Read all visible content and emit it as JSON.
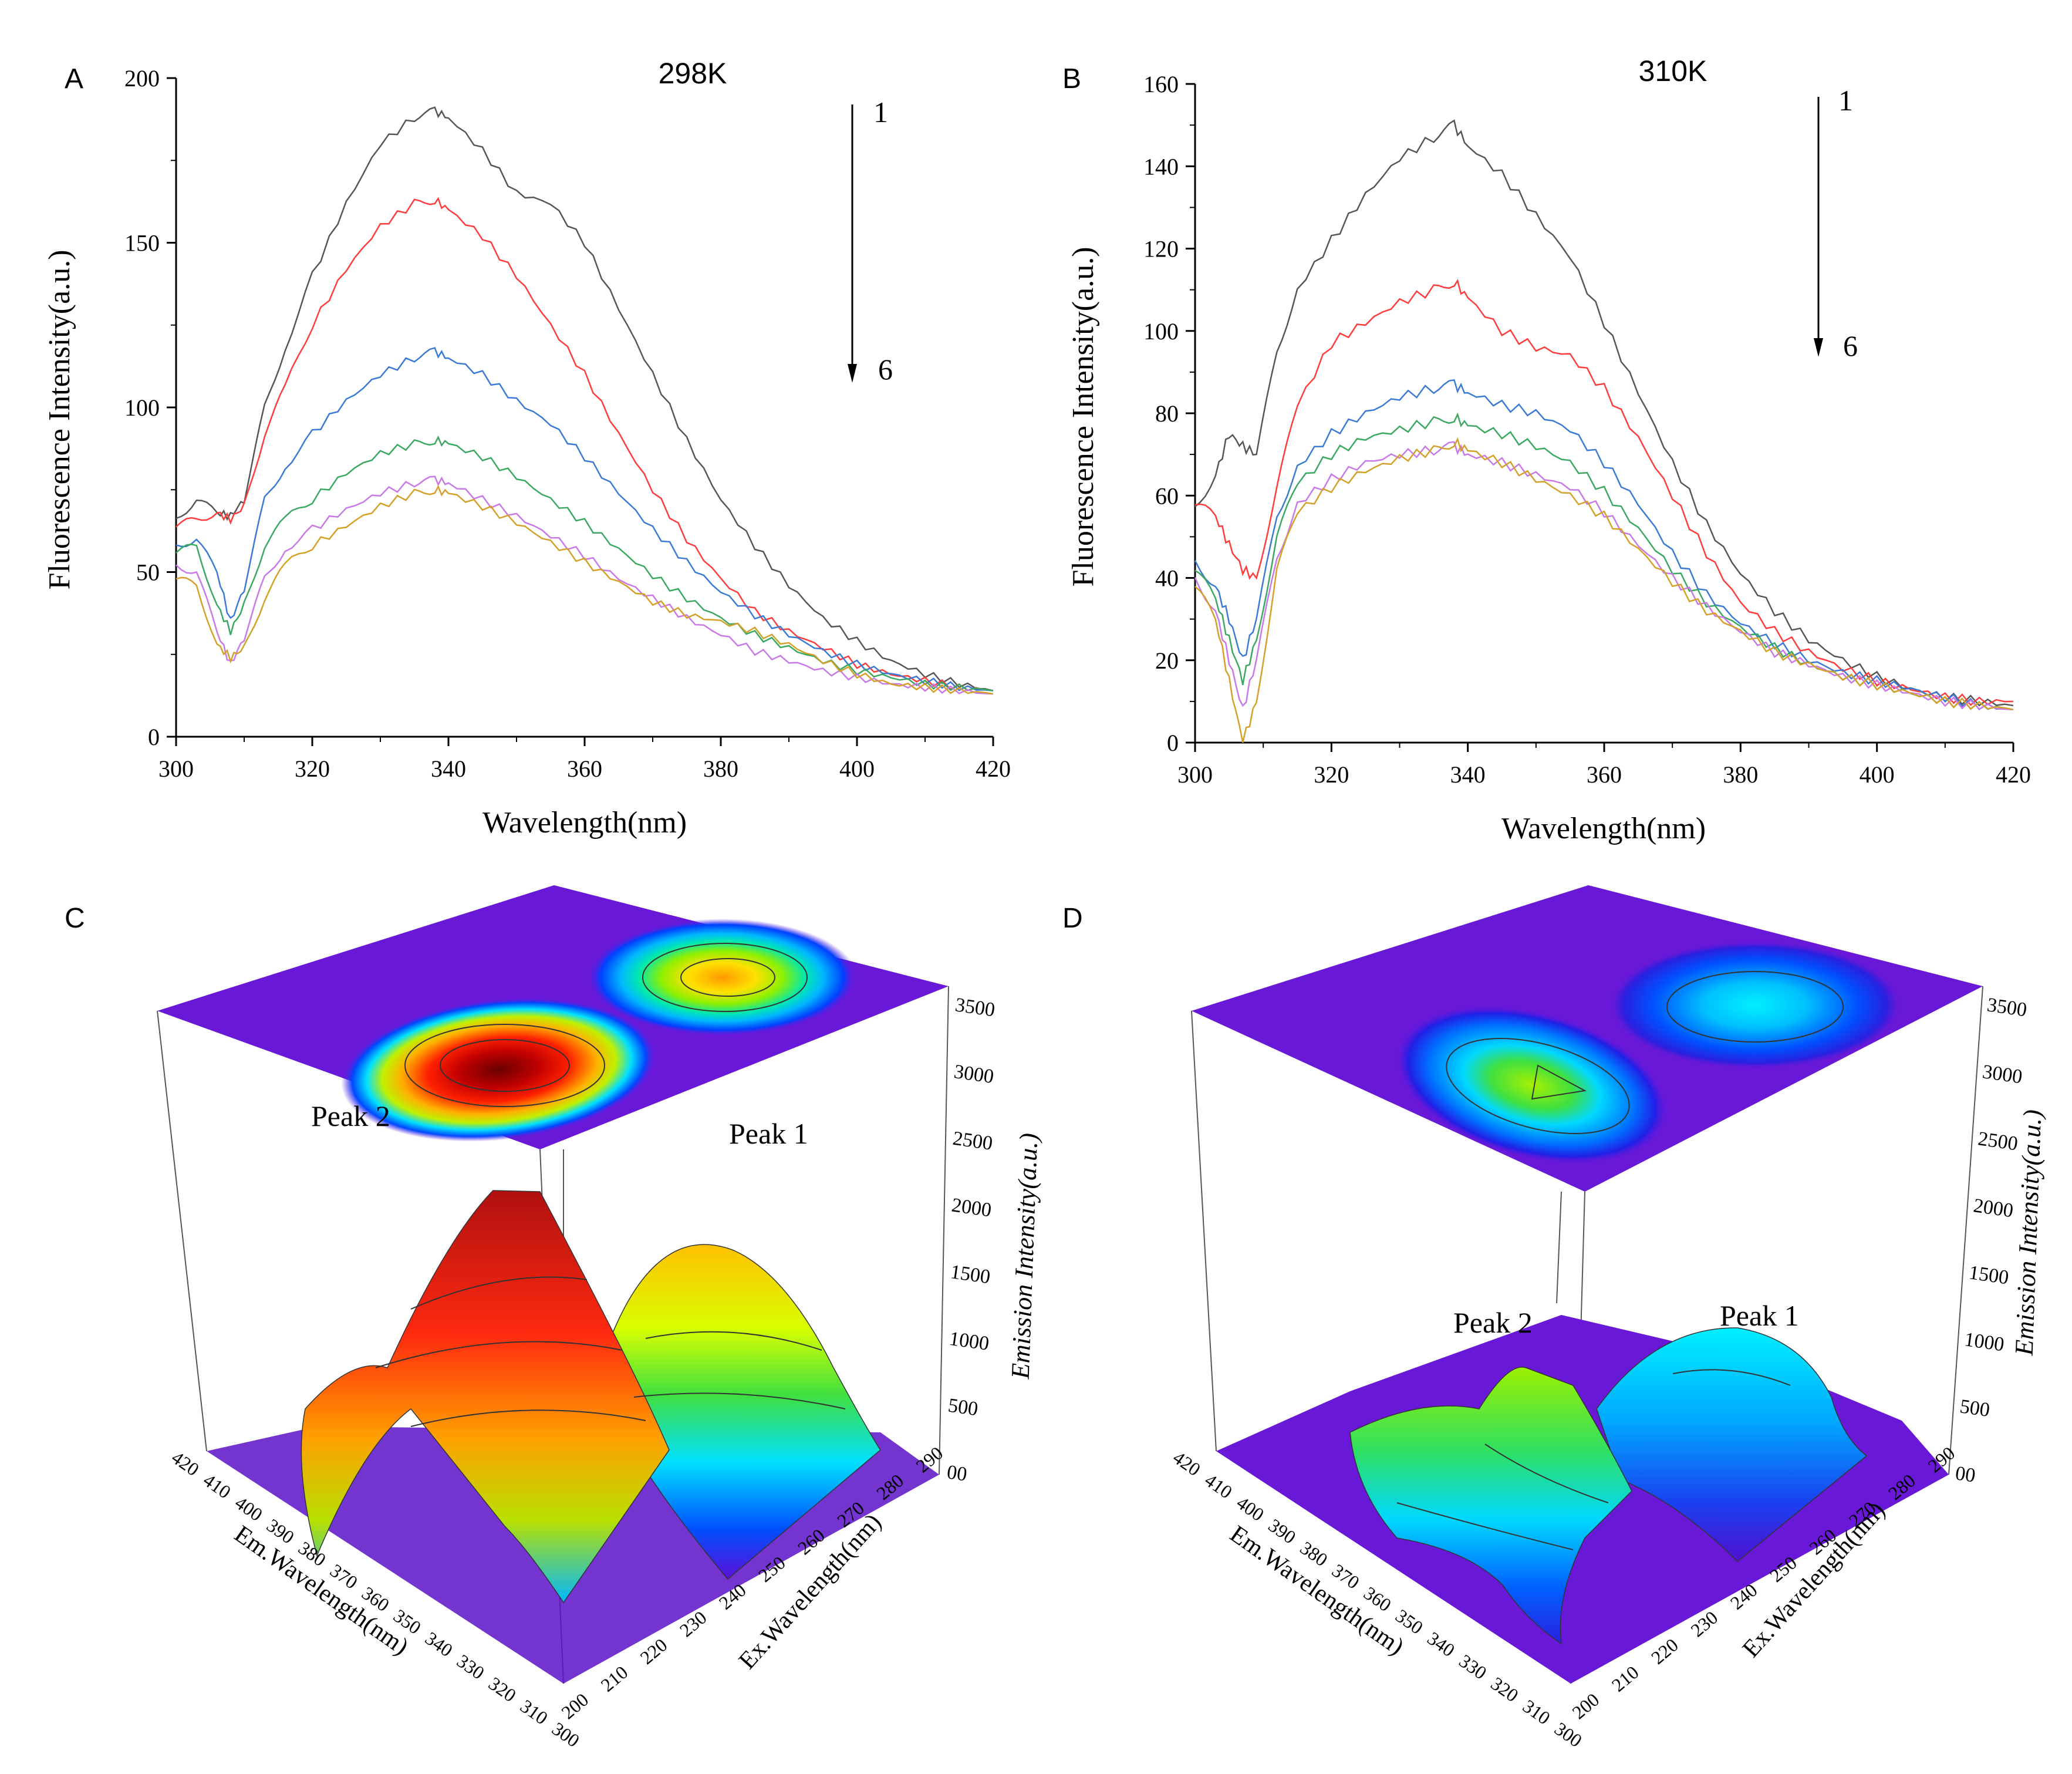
{
  "chart_data": [
    {
      "panel": "A",
      "type": "line",
      "title": "298K",
      "xlabel": "Wavelength(nm)",
      "ylabel": "Fluorescence Intensity(a.u.)",
      "xlim": [
        300,
        420
      ],
      "ylim": [
        0,
        200
      ],
      "xticks": [
        300,
        320,
        340,
        360,
        380,
        400,
        420
      ],
      "yticks": [
        0,
        50,
        100,
        150,
        200
      ],
      "arrow": {
        "start_label": "1",
        "end_label": "6"
      },
      "series": [
        {
          "name": "1",
          "color": "#555555",
          "x": [
            300,
            303,
            306,
            308,
            310,
            313,
            316,
            320,
            325,
            330,
            335,
            338,
            340,
            345,
            350,
            355,
            360,
            365,
            370,
            375,
            380,
            385,
            390,
            395,
            400,
            405,
            410,
            415,
            420
          ],
          "y": [
            66,
            72,
            68,
            67,
            72,
            100,
            118,
            140,
            162,
            180,
            188,
            190,
            188,
            178,
            165,
            162,
            150,
            130,
            110,
            90,
            72,
            58,
            46,
            36,
            29,
            23,
            19,
            16,
            14
          ]
        },
        {
          "name": "2",
          "color": "#ff3b3b",
          "x": [
            300,
            303,
            306,
            308,
            310,
            313,
            316,
            320,
            325,
            330,
            335,
            338,
            340,
            345,
            350,
            355,
            360,
            365,
            370,
            375,
            380,
            385,
            390,
            395,
            400,
            405,
            410,
            415,
            420
          ],
          "y": [
            64,
            66,
            68,
            66,
            70,
            92,
            106,
            125,
            142,
            155,
            162,
            163,
            160,
            152,
            140,
            125,
            110,
            92,
            75,
            60,
            48,
            38,
            32,
            27,
            22,
            19,
            17,
            15,
            14
          ]
        },
        {
          "name": "3",
          "color": "#3a7ad6",
          "x": [
            300,
            303,
            306,
            308,
            310,
            313,
            316,
            320,
            325,
            330,
            335,
            338,
            340,
            345,
            350,
            355,
            360,
            365,
            370,
            375,
            380,
            385,
            390,
            395,
            400,
            405,
            410,
            415,
            420
          ],
          "y": [
            58,
            60,
            50,
            35,
            45,
            72,
            82,
            92,
            102,
            110,
            115,
            117,
            115,
            110,
            102,
            95,
            85,
            74,
            63,
            53,
            44,
            37,
            31,
            26,
            22,
            19,
            17,
            15,
            14
          ]
        },
        {
          "name": "4",
          "color": "#3aa860",
          "x": [
            300,
            303,
            306,
            308,
            310,
            313,
            316,
            320,
            325,
            330,
            335,
            338,
            340,
            345,
            350,
            355,
            360,
            365,
            370,
            375,
            380,
            385,
            390,
            395,
            400,
            405,
            410,
            415,
            420
          ],
          "y": [
            56,
            58,
            40,
            32,
            40,
            58,
            66,
            72,
            80,
            86,
            89,
            90,
            89,
            85,
            79,
            72,
            65,
            57,
            49,
            42,
            36,
            31,
            27,
            23,
            20,
            18,
            16,
            15,
            14
          ]
        },
        {
          "name": "5",
          "color": "#c878e8",
          "x": [
            300,
            303,
            306,
            308,
            310,
            313,
            316,
            320,
            325,
            330,
            335,
            338,
            340,
            345,
            350,
            355,
            360,
            365,
            370,
            375,
            380,
            385,
            390,
            395,
            400,
            405,
            410,
            415,
            420
          ],
          "y": [
            52,
            50,
            32,
            22,
            30,
            48,
            57,
            63,
            69,
            74,
            77,
            78,
            77,
            72,
            67,
            61,
            55,
            48,
            42,
            36,
            31,
            26,
            23,
            20,
            18,
            16,
            15,
            14,
            13
          ]
        },
        {
          "name": "6",
          "color": "#d4a028",
          "x": [
            300,
            303,
            306,
            308,
            310,
            313,
            316,
            320,
            325,
            330,
            335,
            338,
            340,
            345,
            350,
            355,
            360,
            365,
            370,
            375,
            380,
            385,
            390,
            395,
            400,
            405,
            410,
            415,
            420
          ],
          "y": [
            48,
            46,
            28,
            24,
            27,
            42,
            52,
            58,
            64,
            70,
            74,
            75,
            74,
            70,
            65,
            59,
            53,
            47,
            41,
            37,
            35,
            32,
            28,
            23,
            19,
            16,
            15,
            14,
            13
          ]
        }
      ]
    },
    {
      "panel": "B",
      "type": "line",
      "title": "310K",
      "xlabel": "Wavelength(nm)",
      "ylabel": "Fluorescence Intensity(a.u.)",
      "xlim": [
        300,
        420
      ],
      "ylim": [
        0,
        160
      ],
      "xticks": [
        300,
        320,
        340,
        360,
        380,
        400,
        420
      ],
      "yticks": [
        0,
        20,
        40,
        60,
        80,
        100,
        120,
        140,
        160
      ],
      "arrow": {
        "start_label": "1",
        "end_label": "6"
      },
      "series": [
        {
          "name": "1",
          "color": "#555555",
          "x": [
            300,
            303,
            305,
            307,
            309,
            312,
            315,
            320,
            325,
            330,
            335,
            338,
            340,
            345,
            350,
            355,
            360,
            365,
            370,
            375,
            380,
            385,
            390,
            395,
            400,
            405,
            410,
            415,
            420
          ],
          "y": [
            57,
            65,
            75,
            72,
            70,
            95,
            110,
            122,
            133,
            142,
            147,
            150,
            145,
            138,
            128,
            118,
            102,
            85,
            68,
            53,
            41,
            32,
            25,
            20,
            16,
            13,
            11,
            10,
            9
          ]
        },
        {
          "name": "2",
          "color": "#ff3b3b",
          "x": [
            300,
            303,
            305,
            307,
            309,
            312,
            315,
            320,
            325,
            330,
            335,
            338,
            340,
            345,
            350,
            355,
            360,
            365,
            370,
            375,
            380,
            385,
            390,
            395,
            400,
            405,
            410,
            415,
            420
          ],
          "y": [
            58,
            55,
            48,
            42,
            40,
            62,
            82,
            97,
            102,
            107,
            110,
            112,
            108,
            100,
            96,
            94,
            86,
            74,
            60,
            46,
            34,
            27,
            22,
            18,
            15,
            13,
            11,
            10,
            10
          ]
        },
        {
          "name": "3",
          "color": "#3a7ad6",
          "x": [
            300,
            303,
            305,
            307,
            309,
            312,
            315,
            320,
            325,
            330,
            335,
            338,
            340,
            345,
            350,
            355,
            360,
            365,
            370,
            375,
            380,
            385,
            390,
            395,
            400,
            405,
            410,
            415,
            420
          ],
          "y": [
            44,
            38,
            30,
            20,
            30,
            55,
            67,
            75,
            80,
            84,
            86,
            87,
            85,
            82,
            80,
            76,
            68,
            58,
            46,
            36,
            29,
            24,
            20,
            17,
            15,
            13,
            11,
            9,
            8
          ]
        },
        {
          "name": "4",
          "color": "#3aa860",
          "x": [
            300,
            303,
            305,
            307,
            309,
            312,
            315,
            320,
            325,
            330,
            335,
            338,
            340,
            345,
            350,
            355,
            360,
            365,
            370,
            375,
            380,
            385,
            390,
            395,
            400,
            405,
            410,
            415,
            420
          ],
          "y": [
            42,
            35,
            25,
            15,
            25,
            50,
            63,
            70,
            74,
            76,
            78,
            79,
            77,
            75,
            72,
            68,
            61,
            52,
            42,
            34,
            28,
            23,
            19,
            16,
            14,
            12,
            10,
            9,
            8
          ]
        },
        {
          "name": "5",
          "color": "#c878e8",
          "x": [
            300,
            303,
            305,
            307,
            309,
            312,
            315,
            320,
            325,
            330,
            335,
            338,
            340,
            345,
            350,
            355,
            360,
            365,
            370,
            375,
            380,
            385,
            390,
            395,
            400,
            405,
            410,
            415,
            420
          ],
          "y": [
            40,
            32,
            20,
            8,
            20,
            45,
            58,
            64,
            68,
            70,
            71,
            72,
            70,
            68,
            65,
            62,
            56,
            48,
            40,
            33,
            27,
            22,
            19,
            16,
            14,
            12,
            10,
            9,
            8
          ]
        },
        {
          "name": "6",
          "color": "#d4a028",
          "x": [
            300,
            303,
            305,
            307,
            309,
            312,
            315,
            320,
            325,
            330,
            335,
            338,
            340,
            345,
            350,
            355,
            360,
            365,
            370,
            375,
            380,
            385,
            390,
            395,
            400,
            405,
            410,
            415,
            420
          ],
          "y": [
            38,
            30,
            15,
            0,
            10,
            42,
            56,
            62,
            66,
            69,
            71,
            73,
            71,
            68,
            64,
            60,
            55,
            47,
            39,
            32,
            27,
            22,
            19,
            16,
            14,
            12,
            10,
            9,
            8
          ]
        }
      ]
    },
    {
      "panel": "C",
      "type": "surface3d",
      "zlabel": "Emission Intensity(a.u.)",
      "xlabel": "Em.Wavelength(nm)",
      "ylabel": "Ex.Wavelength(nm)",
      "em_ticks": [
        300,
        310,
        320,
        330,
        340,
        350,
        360,
        370,
        380,
        390,
        400,
        410,
        420
      ],
      "ex_ticks": [
        200,
        210,
        220,
        230,
        240,
        250,
        260,
        270,
        280,
        290
      ],
      "z_ticks": [
        0,
        500,
        1000,
        1500,
        2000,
        2500,
        3000,
        3500
      ],
      "z_tick_labels": [
        "00",
        "500",
        "1000",
        "1500",
        "2000",
        "2500",
        "3000",
        "3500"
      ],
      "peaks": [
        {
          "name": "Peak 1",
          "ex_nm": 280,
          "em_nm": 340,
          "intensity": 2350
        },
        {
          "name": "Peak 2",
          "ex_nm": 230,
          "em_nm": 340,
          "intensity": 3450
        }
      ]
    },
    {
      "panel": "D",
      "type": "surface3d",
      "zlabel": "Emission Intensity(a.u.)",
      "xlabel": "Em.Wavelength(nm)",
      "ylabel": "Ex.Wavelength(nm)",
      "em_ticks": [
        300,
        310,
        320,
        330,
        340,
        350,
        360,
        370,
        380,
        390,
        400,
        410,
        420
      ],
      "ex_ticks": [
        200,
        210,
        220,
        230,
        240,
        250,
        260,
        270,
        280,
        290
      ],
      "z_ticks": [
        0,
        500,
        1000,
        1500,
        2000,
        2500,
        3000,
        3500
      ],
      "z_tick_labels": [
        "00",
        "500",
        "1000",
        "1500",
        "2000",
        "2500",
        "3000",
        "3500"
      ],
      "peaks": [
        {
          "name": "Peak 1",
          "ex_nm": 280,
          "em_nm": 340,
          "intensity": 1050
        },
        {
          "name": "Peak 2",
          "ex_nm": 230,
          "em_nm": 340,
          "intensity": 1400
        }
      ]
    }
  ],
  "panel_letters": [
    "A",
    "B",
    "C",
    "D"
  ]
}
